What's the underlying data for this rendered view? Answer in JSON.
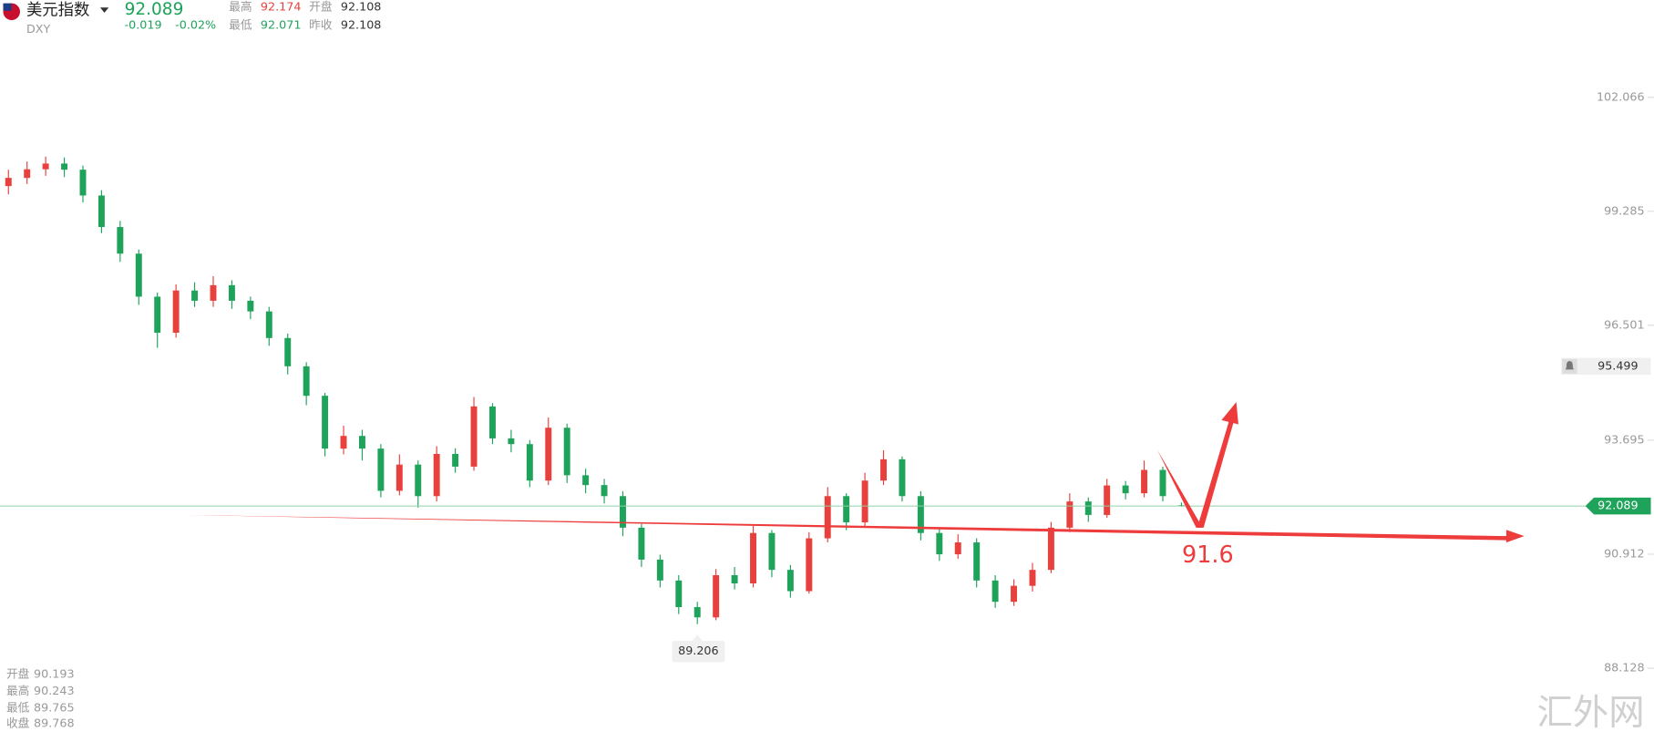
{
  "header": {
    "name": "美元指数",
    "price": 92.089,
    "ticker": "DXY",
    "change": -0.019,
    "change_pct": "-0.02%",
    "stats": [
      {
        "label": "最高",
        "value": 92.174
      },
      {
        "label": "开盘",
        "value": 92.108
      },
      {
        "label": "最低",
        "value": 92.071
      },
      {
        "label": "昨收",
        "value": 92.108
      }
    ]
  },
  "readout": [
    {
      "label": "开盘",
      "value": 90.193
    },
    {
      "label": "最高",
      "value": 90.243
    },
    {
      "label": "最低",
      "value": 89.765
    },
    {
      "label": "收盘",
      "value": 89.768
    }
  ],
  "watermark": "汇外网",
  "chart_data": {
    "type": "candlestick",
    "open": [
      99.9,
      100.1,
      100.31,
      100.45,
      100.3,
      99.67,
      98.9,
      98.25,
      97.2,
      96.32,
      97.35,
      97.1,
      97.48,
      97.1,
      96.84,
      96.19,
      95.5,
      94.78,
      93.49,
      93.8,
      93.49,
      92.46,
      93.1,
      92.33,
      93.36,
      93.05,
      94.52,
      93.74,
      93.6,
      92.71,
      94.0,
      92.84,
      92.6,
      92.33,
      91.56,
      90.78,
      90.27,
      89.62,
      89.37,
      90.4,
      90.2,
      91.43,
      90.53,
      90.01,
      91.3,
      92.33,
      91.69,
      92.71,
      93.23,
      92.33,
      91.43,
      90.91,
      91.2,
      90.27,
      89.75,
      90.14,
      90.53,
      91.56,
      92.2,
      91.87,
      92.59,
      92.4,
      92.97,
      92.108
    ],
    "high": [
      100.3,
      100.5,
      100.62,
      100.6,
      100.4,
      99.8,
      99.05,
      98.35,
      97.3,
      97.5,
      97.55,
      97.7,
      97.6,
      97.2,
      96.95,
      96.3,
      95.6,
      94.85,
      94.05,
      93.95,
      93.6,
      93.35,
      93.2,
      93.55,
      93.5,
      94.75,
      94.6,
      93.95,
      93.7,
      94.25,
      94.1,
      93.0,
      92.75,
      92.45,
      91.65,
      90.9,
      90.4,
      89.75,
      90.55,
      90.6,
      91.6,
      91.5,
      90.65,
      91.45,
      92.55,
      92.4,
      92.9,
      93.45,
      93.3,
      92.45,
      91.55,
      91.4,
      91.3,
      90.4,
      90.3,
      90.7,
      91.7,
      92.4,
      92.3,
      92.75,
      92.7,
      93.2,
      93.05,
      92.174
    ],
    "low": [
      99.7,
      99.95,
      100.15,
      100.12,
      99.5,
      98.75,
      98.05,
      97.0,
      95.95,
      96.2,
      96.95,
      96.95,
      96.9,
      96.65,
      96.0,
      95.3,
      94.55,
      93.3,
      93.35,
      93.2,
      92.3,
      92.35,
      92.05,
      92.2,
      92.9,
      92.95,
      93.6,
      93.4,
      92.55,
      92.6,
      92.65,
      92.4,
      92.15,
      91.35,
      90.6,
      90.1,
      89.45,
      89.206,
      89.3,
      90.05,
      90.1,
      90.35,
      89.85,
      89.95,
      91.2,
      91.5,
      91.6,
      92.6,
      92.2,
      91.25,
      90.75,
      90.8,
      90.1,
      89.6,
      89.65,
      90.0,
      90.45,
      91.45,
      91.7,
      91.8,
      92.25,
      92.3,
      92.2,
      92.071
    ],
    "close": [
      100.1,
      100.31,
      100.45,
      100.3,
      99.67,
      98.9,
      98.25,
      97.2,
      96.32,
      97.35,
      97.1,
      97.48,
      97.1,
      96.84,
      96.19,
      95.5,
      94.78,
      93.49,
      93.8,
      93.49,
      92.46,
      93.1,
      92.33,
      93.36,
      93.05,
      94.52,
      93.74,
      93.6,
      92.71,
      94.0,
      92.84,
      92.6,
      92.33,
      91.56,
      90.78,
      90.27,
      89.62,
      89.37,
      90.4,
      90.2,
      91.43,
      90.53,
      90.01,
      91.3,
      92.33,
      91.69,
      92.71,
      93.23,
      92.33,
      91.43,
      90.91,
      91.2,
      90.27,
      89.75,
      90.14,
      90.53,
      91.56,
      92.2,
      91.87,
      92.59,
      92.4,
      92.97,
      92.33,
      92.089
    ],
    "up_color": "#e8413d",
    "down_color": "#1fa35b",
    "ylim": [
      86.33,
      104.44
    ],
    "yticks": [
      102.066,
      99.285,
      96.501,
      93.695,
      90.912,
      88.128
    ],
    "last_price": 92.089,
    "alert_price": 95.499,
    "low_index": 37,
    "annotation": "91.6"
  }
}
